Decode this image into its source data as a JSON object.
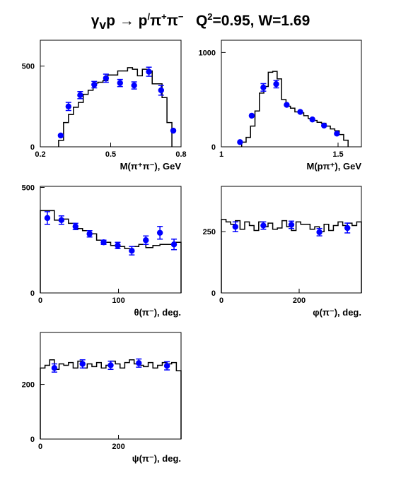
{
  "title": {
    "reaction_left": "γ",
    "reaction_sub": "v",
    "reaction_mid": "p → p",
    "reaction_prime": "/",
    "reaction_pion1": "π",
    "reaction_charge1": "+",
    "reaction_pion2": "π",
    "reaction_charge2": "−",
    "q2_label": "Q",
    "q2_exp": "2",
    "q2_value": "=0.95, W=1.69"
  },
  "colors": {
    "histogram": "#000000",
    "data_points": "#0000ff"
  },
  "chart_data": [
    {
      "id": "m-pipi",
      "type": "histogram+scatter",
      "xlabel": "M(π⁺π⁻), GeV",
      "xlim": [
        0.2,
        0.8
      ],
      "ylim": [
        0,
        660
      ],
      "xticks": [
        {
          "v": 0.2,
          "l": "0.2"
        },
        {
          "v": 0.5,
          "l": "0.5"
        },
        {
          "v": 0.8,
          "l": "0.8"
        }
      ],
      "yticks": [
        {
          "v": 0,
          "l": "0"
        },
        {
          "v": 500,
          "l": "500"
        }
      ],
      "hist_edges": [
        0.278,
        0.299,
        0.32,
        0.341,
        0.362,
        0.383,
        0.404,
        0.425,
        0.446,
        0.467,
        0.488,
        0.509,
        0.53,
        0.551,
        0.572,
        0.593,
        0.614,
        0.635,
        0.656,
        0.677,
        0.698,
        0.719,
        0.74,
        0.761
      ],
      "hist_values": [
        40,
        150,
        200,
        245,
        275,
        325,
        350,
        395,
        400,
        410,
        445,
        445,
        470,
        470,
        490,
        480,
        440,
        480,
        470,
        390,
        390,
        305,
        150
      ],
      "points": [
        {
          "x": 0.287,
          "y": 70,
          "err": 0
        },
        {
          "x": 0.32,
          "y": 250,
          "err": 25
        },
        {
          "x": 0.37,
          "y": 320,
          "err": 22
        },
        {
          "x": 0.43,
          "y": 385,
          "err": 20
        },
        {
          "x": 0.48,
          "y": 425,
          "err": 25
        },
        {
          "x": 0.54,
          "y": 395,
          "err": 22
        },
        {
          "x": 0.6,
          "y": 380,
          "err": 22
        },
        {
          "x": 0.663,
          "y": 465,
          "err": 28
        },
        {
          "x": 0.715,
          "y": 350,
          "err": 30
        },
        {
          "x": 0.767,
          "y": 100,
          "err": 0
        }
      ]
    },
    {
      "id": "m-ppi",
      "type": "histogram+scatter",
      "xlabel": "M(pπ⁺), GeV",
      "xlim": [
        1.0,
        1.6
      ],
      "ylim": [
        0,
        1130
      ],
      "xticks": [
        {
          "v": 1.0,
          "l": "1"
        },
        {
          "v": 1.5,
          "l": "1.5"
        }
      ],
      "yticks": [
        {
          "v": 0,
          "l": "0"
        },
        {
          "v": 1000,
          "l": "1000"
        }
      ],
      "hist_edges": [
        1.087,
        1.106,
        1.125,
        1.144,
        1.163,
        1.182,
        1.201,
        1.22,
        1.239,
        1.258,
        1.277,
        1.296,
        1.315,
        1.334,
        1.353,
        1.372,
        1.391,
        1.41,
        1.429,
        1.448,
        1.467,
        1.486,
        1.505,
        1.524,
        1.543
      ],
      "hist_values": [
        50,
        100,
        220,
        380,
        570,
        640,
        790,
        800,
        720,
        500,
        430,
        410,
        370,
        360,
        330,
        300,
        280,
        260,
        250,
        220,
        190,
        170,
        130,
        70
      ],
      "points": [
        {
          "x": 1.08,
          "y": 50,
          "err": 0
        },
        {
          "x": 1.13,
          "y": 330,
          "err": 0
        },
        {
          "x": 1.18,
          "y": 630,
          "err": 40
        },
        {
          "x": 1.235,
          "y": 665,
          "err": 40
        },
        {
          "x": 1.28,
          "y": 445,
          "err": 0
        },
        {
          "x": 1.338,
          "y": 370,
          "err": 0
        },
        {
          "x": 1.39,
          "y": 290,
          "err": 0
        },
        {
          "x": 1.44,
          "y": 225,
          "err": 0
        },
        {
          "x": 1.495,
          "y": 140,
          "err": 0
        }
      ]
    },
    {
      "id": "theta",
      "type": "histogram+scatter",
      "xlabel": "θ(π⁻), deg.",
      "xlim": [
        0,
        180
      ],
      "ylim": [
        0,
        505
      ],
      "xticks": [
        {
          "v": 0,
          "l": "0"
        },
        {
          "v": 100,
          "l": "100"
        }
      ],
      "yticks": [
        {
          "v": 0,
          "l": "0"
        },
        {
          "v": 500,
          "l": "500"
        }
      ],
      "hist_edges": [
        0,
        9,
        18,
        27,
        36,
        45,
        54,
        63,
        72,
        81,
        90,
        99,
        108,
        117,
        126,
        135,
        144,
        153,
        162,
        171,
        180
      ],
      "hist_values": [
        390,
        390,
        345,
        350,
        330,
        305,
        295,
        280,
        250,
        240,
        225,
        220,
        210,
        220,
        230,
        215,
        225,
        230,
        230,
        240
      ],
      "points": [
        {
          "x": 9,
          "y": 355,
          "err": 30
        },
        {
          "x": 27,
          "y": 345,
          "err": 20
        },
        {
          "x": 45,
          "y": 315,
          "err": 15
        },
        {
          "x": 63,
          "y": 280,
          "err": 15
        },
        {
          "x": 81,
          "y": 240,
          "err": 10
        },
        {
          "x": 99,
          "y": 225,
          "err": 15
        },
        {
          "x": 117,
          "y": 200,
          "err": 20
        },
        {
          "x": 135,
          "y": 250,
          "err": 20
        },
        {
          "x": 153,
          "y": 285,
          "err": 30
        },
        {
          "x": 171,
          "y": 230,
          "err": 25
        }
      ]
    },
    {
      "id": "phi",
      "type": "histogram+scatter",
      "xlabel": "φ(π⁻), deg.",
      "xlim": [
        0,
        360
      ],
      "ylim": [
        0,
        435
      ],
      "xticks": [
        {
          "v": 0,
          "l": "0"
        },
        {
          "v": 200,
          "l": "200"
        }
      ],
      "yticks": [
        {
          "v": 0,
          "l": "0"
        },
        {
          "v": 250,
          "l": "250"
        }
      ],
      "hist_edges": [
        0,
        12,
        24,
        36,
        48,
        60,
        72,
        84,
        96,
        108,
        120,
        132,
        144,
        156,
        168,
        180,
        192,
        204,
        216,
        228,
        240,
        252,
        264,
        276,
        288,
        300,
        312,
        324,
        336,
        348,
        360
      ],
      "hist_values": [
        300,
        290,
        280,
        295,
        260,
        290,
        275,
        255,
        290,
        270,
        285,
        260,
        265,
        295,
        270,
        255,
        290,
        280,
        280,
        260,
        270,
        250,
        280,
        255,
        275,
        290,
        275,
        285,
        275,
        290
      ],
      "points": [
        {
          "x": 36,
          "y": 270,
          "err": 20
        },
        {
          "x": 108,
          "y": 275,
          "err": 15
        },
        {
          "x": 180,
          "y": 278,
          "err": 15
        },
        {
          "x": 252,
          "y": 248,
          "err": 15
        },
        {
          "x": 324,
          "y": 265,
          "err": 20
        }
      ]
    },
    {
      "id": "psi",
      "type": "histogram+scatter",
      "xlabel": "ψ(π⁻), deg.",
      "xlim": [
        0,
        360
      ],
      "ylim": [
        0,
        390
      ],
      "xticks": [
        {
          "v": 0,
          "l": "0"
        },
        {
          "v": 200,
          "l": "200"
        }
      ],
      "yticks": [
        {
          "v": 0,
          "l": "0"
        },
        {
          "v": 200,
          "l": "200"
        }
      ],
      "hist_edges": [
        0,
        12,
        24,
        36,
        48,
        60,
        72,
        84,
        96,
        108,
        120,
        132,
        144,
        156,
        168,
        180,
        192,
        204,
        216,
        228,
        240,
        252,
        264,
        276,
        288,
        300,
        312,
        324,
        336,
        348,
        360
      ],
      "hist_values": [
        260,
        270,
        290,
        255,
        275,
        270,
        280,
        260,
        285,
        260,
        275,
        265,
        280,
        260,
        270,
        285,
        275,
        260,
        280,
        290,
        275,
        270,
        265,
        280,
        260,
        270,
        280,
        275,
        280,
        250
      ],
      "points": [
        {
          "x": 36,
          "y": 260,
          "err": 15
        },
        {
          "x": 108,
          "y": 275,
          "err": 15
        },
        {
          "x": 180,
          "y": 270,
          "err": 15
        },
        {
          "x": 252,
          "y": 278,
          "err": 15
        },
        {
          "x": 324,
          "y": 268,
          "err": 15
        }
      ]
    }
  ]
}
